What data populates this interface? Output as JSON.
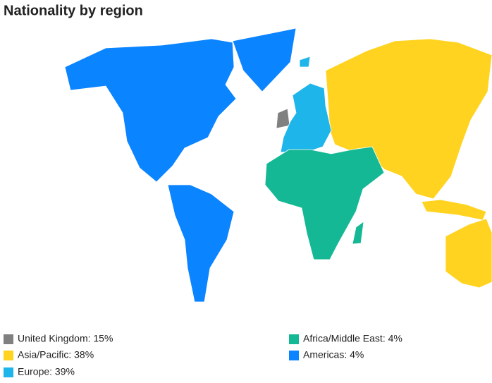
{
  "chart_data": {
    "type": "map",
    "title": "Nationality by region",
    "regions": [
      {
        "label": "United Kingdom: 15%",
        "value": 15,
        "color": "#808080"
      },
      {
        "label": "Asia/Pacific: 38%",
        "value": 38,
        "color": "#ffd31f"
      },
      {
        "label": "Europe: 39%",
        "value": 39,
        "color": "#1db5ea"
      },
      {
        "label": "Africa/Middle East: 4%",
        "value": 4,
        "color": "#15b894"
      },
      {
        "label": "Americas: 4%",
        "value": 4,
        "color": "#0b84ff"
      }
    ]
  }
}
